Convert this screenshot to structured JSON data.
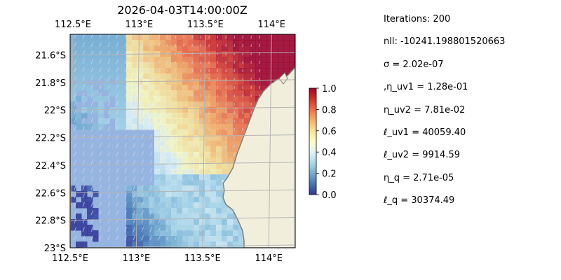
{
  "chart_data": {
    "type": "heatmap",
    "title": "2026-04-03T14:00:00Z",
    "xlim": [
      112.5,
      114.2
    ],
    "ylim": [
      -23.0,
      -21.45
    ],
    "x_ticks": [
      {
        "value": 112.5,
        "label": "112.5°E"
      },
      {
        "value": 113.0,
        "label": "113°E"
      },
      {
        "value": 113.5,
        "label": "113.5°E"
      },
      {
        "value": 114.0,
        "label": "114°E"
      }
    ],
    "y_ticks": [
      {
        "value": -21.6,
        "label": "21.6°S"
      },
      {
        "value": -21.8,
        "label": "21.8°S"
      },
      {
        "value": -22.0,
        "label": "22°S"
      },
      {
        "value": -22.2,
        "label": "22.2°S"
      },
      {
        "value": -22.4,
        "label": "22.4°S"
      },
      {
        "value": -22.6,
        "label": "22.6°S"
      },
      {
        "value": -22.8,
        "label": "22.8°S"
      },
      {
        "value": -23.0,
        "label": "23°S"
      }
    ],
    "grid": true,
    "colormap": "RdYlBu_r",
    "colorbar": {
      "range": [
        0.0,
        1.0
      ],
      "ticks": [
        {
          "value": 0.0,
          "label": "0.0"
        },
        {
          "value": 0.2,
          "label": "0.2"
        },
        {
          "value": 0.4,
          "label": "0.4"
        },
        {
          "value": 0.6,
          "label": "0.6"
        },
        {
          "value": 0.8,
          "label": "0.8"
        },
        {
          "value": 1.0,
          "label": "1.0"
        }
      ]
    },
    "colors": {
      "ocean": "#96b4e0",
      "land": "#f1efdc",
      "coastline": "#7f7f7f",
      "gridline": "#b4b4b4",
      "vector_arrows": "#d8d8f0"
    },
    "layers": [
      "gridded field (0–1)",
      "velocity arrows",
      "coastline",
      "lat/lon grid"
    ]
  },
  "params": [
    {
      "text": "Iterations: 200"
    },
    {
      "text": "nll: -10241.198801520663"
    },
    {
      "text": "σ = 2.02e-07"
    },
    {
      "text": ",η_uv1 = 1.28e-01"
    },
    {
      "text": "η_uv2 = 7.81e-02"
    },
    {
      "text": "ℓ_uv1 = 40059.40"
    },
    {
      "text": "ℓ_uv2 = 9914.59"
    },
    {
      "text": "η_q = 2.71e-05"
    },
    {
      "text": "ℓ_q = 30374.49"
    }
  ]
}
